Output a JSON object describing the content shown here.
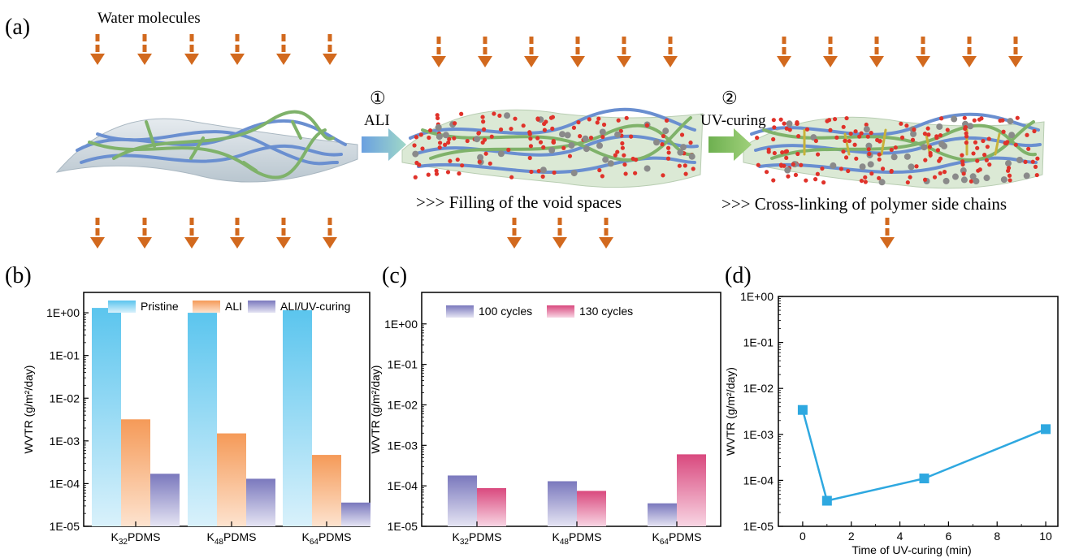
{
  "panel_labels": {
    "a": "(a)",
    "b": "(b)",
    "c": "(c)",
    "d": "(d)"
  },
  "schematic": {
    "water_label": "Water molecules",
    "step1_num": "①",
    "step1_label": "ALI",
    "step2_num": "②",
    "step2_label": "UV-curing",
    "caption_mid": ">>> Filling of the void spaces",
    "caption_right": ">>> Cross-linking of polymer side chains",
    "colors": {
      "arrow": "#d2691e",
      "fiber_blue": "#6a8fd0",
      "fiber_green": "#7fb26a",
      "molecule": "#e0322a",
      "sheet": "#c9d4dc"
    }
  },
  "chart_data": [
    {
      "type": "bar",
      "scale": "log",
      "ylabel": "WVTR (g/m²/day)",
      "ylim": [
        1e-05,
        1
      ],
      "ytick_labels": [
        "1E+00",
        "1E-01",
        "1E-02",
        "1E-03",
        "1E-04",
        "1E-05"
      ],
      "categories": [
        "K32PDMS",
        "K48PDMS",
        "K64PDMS"
      ],
      "category_labels": [
        [
          "K",
          "32",
          "PDMS"
        ],
        [
          "K",
          "48",
          "PDMS"
        ],
        [
          "K",
          "64",
          "PDMS"
        ]
      ],
      "series": [
        {
          "name": "Pristine",
          "values": [
            1.3,
            1.0,
            1.15
          ],
          "color": "#5bc5ee"
        },
        {
          "name": "ALI",
          "values": [
            0.0032,
            0.0015,
            0.00047
          ],
          "color": "#f59a58"
        },
        {
          "name": "ALI/UV-curing",
          "values": [
            0.00017,
            0.00013,
            3.6e-05
          ],
          "color": "#7a78bd"
        }
      ],
      "legend": "top"
    },
    {
      "type": "bar",
      "scale": "log",
      "ylabel": "WVTR (g/m²/day)",
      "ylim": [
        1e-05,
        10
      ],
      "ytick_labels": [
        "1E+00",
        "1E-01",
        "1E-02",
        "1E-03",
        "1E-04",
        "1E-05"
      ],
      "categories": [
        "K32PDMS",
        "K48PDMS",
        "K64PDMS"
      ],
      "category_labels": [
        [
          "K",
          "32",
          "PDMS"
        ],
        [
          "K",
          "48",
          "PDMS"
        ],
        [
          "K",
          "64",
          "PDMS"
        ]
      ],
      "series": [
        {
          "name": "100 cycles",
          "values": [
            0.00018,
            0.00013,
            3.7e-05
          ],
          "color": "#7a78bd"
        },
        {
          "name": "130 cycles",
          "values": [
            8.8e-05,
            7.5e-05,
            0.0006
          ],
          "color": "#d9497e"
        }
      ],
      "legend": "top-left"
    },
    {
      "type": "line",
      "scale": "log",
      "ylabel": "WVTR (g/m²/day)",
      "xlabel": "Time of UV-curing (min)",
      "xlim": [
        -1,
        10.5
      ],
      "ylim": [
        1e-05,
        1
      ],
      "xticks": [
        0,
        2,
        4,
        6,
        8,
        10
      ],
      "ytick_labels": [
        "1E+00",
        "1E-01",
        "1E-02",
        "1E-03",
        "1E-04",
        "1E-05"
      ],
      "x": [
        0,
        1,
        5,
        10
      ],
      "y": [
        0.0034,
        3.6e-05,
        0.00011,
        0.0013
      ],
      "color": "#2ea8e0"
    }
  ]
}
